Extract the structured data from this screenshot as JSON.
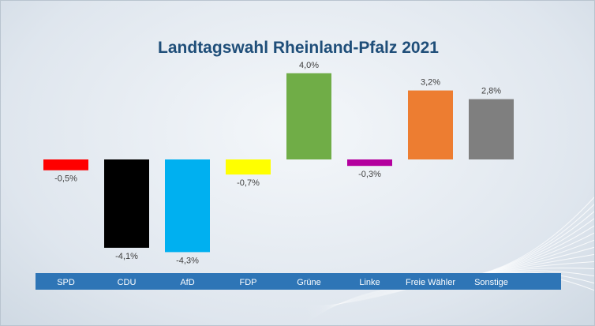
{
  "chart_data": {
    "type": "bar",
    "title": "Landtagswahl Rheinland-Pfalz 2021",
    "categories": [
      "SPD",
      "CDU",
      "AfD",
      "FDP",
      "Grüne",
      "Linke",
      "Freie Wähler",
      "Sonstige"
    ],
    "values": [
      -0.5,
      -4.1,
      -4.3,
      -0.7,
      4.0,
      -0.3,
      3.2,
      2.8
    ],
    "value_labels": [
      "-0,5%",
      "-4,1%",
      "-4,3%",
      "-0,7%",
      "4,0%",
      "-0,3%",
      "3,2%",
      "2,8%"
    ],
    "colors": [
      "#ff0000",
      "#000000",
      "#00b0f0",
      "#ffff00",
      "#70ad47",
      "#b4009e",
      "#ed7d31",
      "#7f7f7f"
    ],
    "category_band_color": "#2e75b6",
    "title_color": "#1f4e79",
    "xlabel": "",
    "ylabel": "",
    "grid": false,
    "legend": "none"
  }
}
